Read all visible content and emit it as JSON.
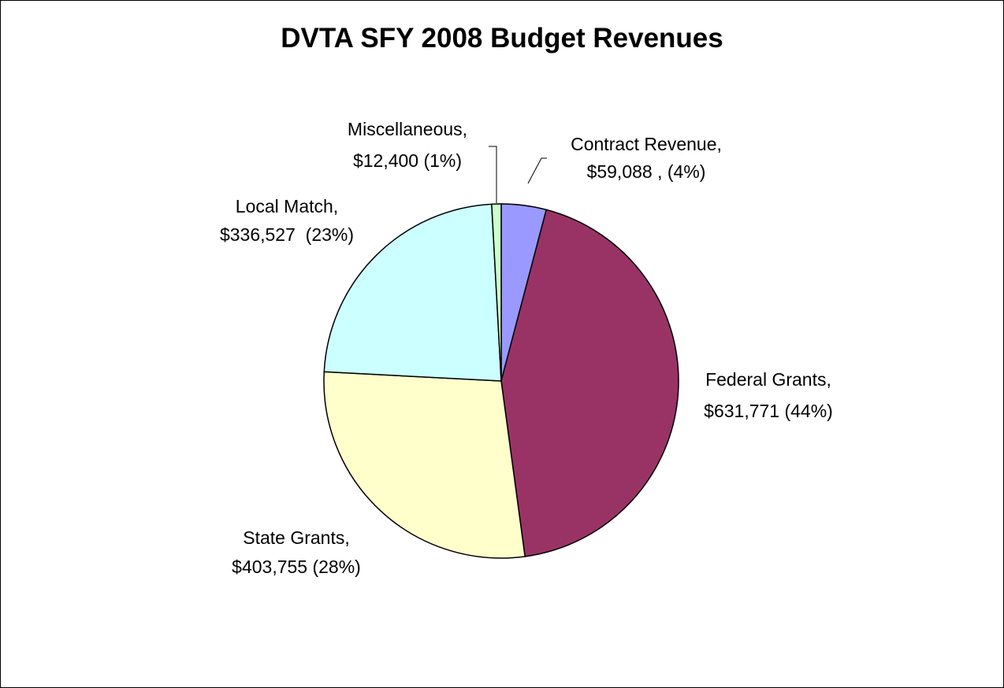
{
  "chart_data": {
    "type": "pie",
    "title": "DVTA SFY 2008 Budget Revenues",
    "slices": [
      {
        "name": "Contract Revenue",
        "value": 59088,
        "percent": 4,
        "color": "#9999FF",
        "label_line1": "Contract Revenue,",
        "label_line2": "$59,088 , (4%)"
      },
      {
        "name": "Federal Grants",
        "value": 631771,
        "percent": 44,
        "color": "#993366",
        "label_line1": "Federal Grants,",
        "label_line2": "$631,771 (44%)"
      },
      {
        "name": "State Grants",
        "value": 403755,
        "percent": 28,
        "color": "#FFFFCC",
        "label_line1": "State Grants,",
        "label_line2": "$403,755 (28%)"
      },
      {
        "name": "Local Match",
        "value": 336527,
        "percent": 23,
        "color": "#CCFFFF",
        "label_line1": "Local Match,",
        "label_line2": "$336,527  (23%)"
      },
      {
        "name": "Miscellaneous",
        "value": 12400,
        "percent": 1,
        "color": "#CCFFCC",
        "label_line1": "Miscellaneous,",
        "label_line2": "$12,400 (1%)"
      }
    ],
    "legend": "none",
    "start_angle": "12 o'clock",
    "direction": "clockwise"
  }
}
